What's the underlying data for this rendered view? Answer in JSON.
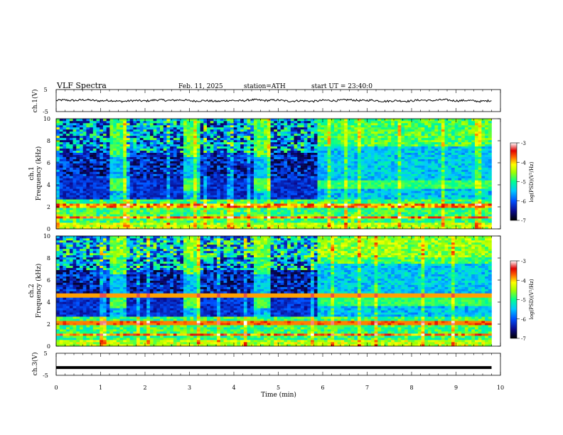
{
  "header": {
    "title": "VLF  Spectra",
    "date": "Feb. 11, 2025",
    "station": "station=ATH",
    "start_ut": "start  UT  =   23:40:0"
  },
  "chart_data": [
    {
      "name": "ch1-voltage",
      "type": "line",
      "ylabel": "ch.1(V)",
      "ylim": [
        -5,
        5
      ],
      "yticks": [
        "5",
        "-5"
      ],
      "xlim": [
        0,
        10
      ],
      "line_color": "#000000"
    },
    {
      "name": "ch1-spectrogram",
      "type": "heatmap",
      "ylabel_top": "ch.1",
      "ylabel": "Frequency (kHz)",
      "ylim": [
        0,
        10
      ],
      "yticks": [
        "0",
        "2",
        "4",
        "6",
        "8",
        "10"
      ],
      "xlim": [
        0,
        10
      ],
      "data_extent_min": 9.8,
      "quiet_intervals_min": [
        [
          0,
          1.2
        ],
        [
          1.6,
          2.9
        ],
        [
          3.25,
          4.45
        ],
        [
          4.85,
          5.9
        ]
      ],
      "quiet_notch_intervals_min": [
        [
          1.2,
          1.6
        ],
        [
          2.9,
          3.25
        ],
        [
          4.45,
          4.85
        ]
      ],
      "colorbar": {
        "label": "log(PSD)(V²/Hz)",
        "range": [
          -7,
          -3
        ],
        "ticks": [
          "-3",
          "-4",
          "-5",
          "-6",
          "-7"
        ]
      }
    },
    {
      "name": "ch2-spectrogram",
      "type": "heatmap",
      "ylabel_top": "ch.2",
      "ylabel": "Frequency (kHz)",
      "ylim": [
        0,
        10
      ],
      "yticks": [
        "0",
        "2",
        "4",
        "6",
        "8",
        "10"
      ],
      "xlim": [
        0,
        10
      ],
      "data_extent_min": 9.8,
      "colorbar": {
        "label": "log(PSD)(V²/Hz)",
        "range": [
          -7,
          -3
        ],
        "ticks": [
          "-3",
          "-4",
          "-5",
          "-6",
          "-7"
        ]
      }
    },
    {
      "name": "ch3-voltage",
      "type": "line",
      "ylabel": "ch.3(V)",
      "ylim": [
        -5,
        5
      ],
      "yticks": [
        "5",
        "-5"
      ],
      "xlim": [
        0,
        10
      ],
      "constant_value": -1.5,
      "line_color": "#000000"
    }
  ],
  "x_axis": {
    "label": "Time  (min)",
    "ticks": [
      "0",
      "1",
      "2",
      "3",
      "4",
      "5",
      "6",
      "7",
      "8",
      "9",
      "10"
    ]
  }
}
